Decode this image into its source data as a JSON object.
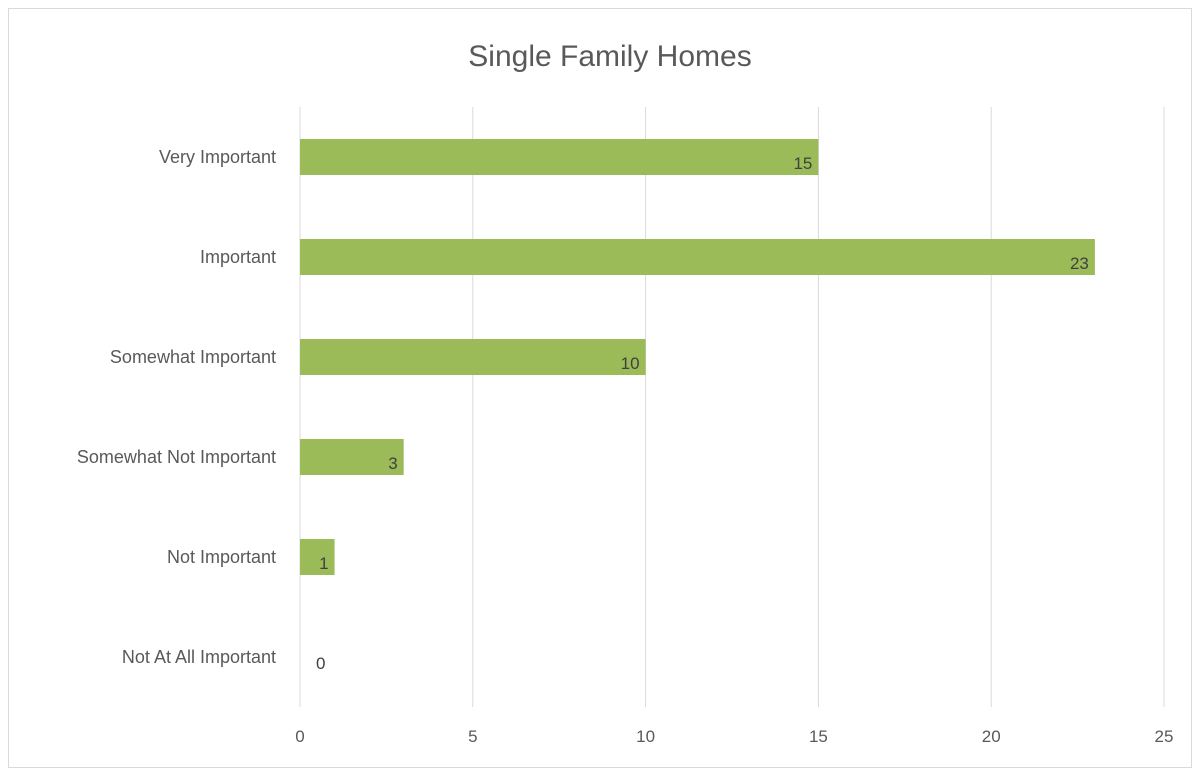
{
  "chart_data": {
    "type": "bar",
    "orientation": "horizontal",
    "title": "Single Family Homes",
    "categories": [
      "Very Important",
      "Important",
      "Somewhat Important",
      "Somewhat Not Important",
      "Not Important",
      "Not At All Important"
    ],
    "values": [
      15,
      23,
      10,
      3,
      1,
      0
    ],
    "data_labels": [
      "15",
      "23",
      "10",
      "3",
      "1",
      "0"
    ],
    "xlim": [
      0,
      25
    ],
    "xticks": [
      0,
      5,
      10,
      15,
      20,
      25
    ],
    "xtick_labels": [
      "0",
      "5",
      "10",
      "15",
      "20",
      "25"
    ],
    "grid": "vertical",
    "legend": "none",
    "colors": {
      "bar": "#9bbb59",
      "grid": "#d9d9d9",
      "text": "#595959"
    }
  }
}
